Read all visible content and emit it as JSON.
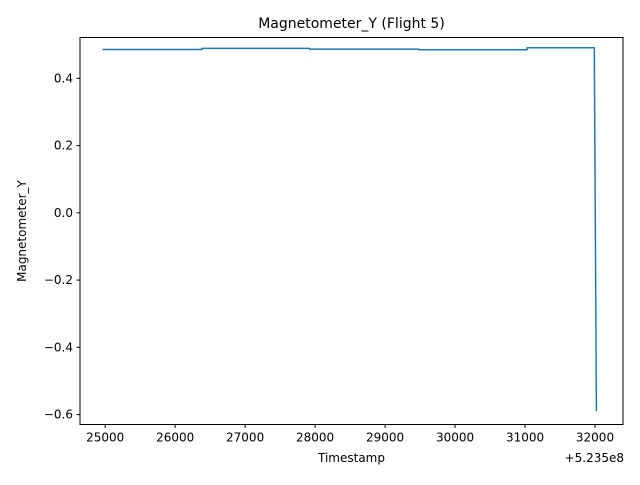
{
  "chart_data": {
    "type": "line",
    "title": "Magnetometer_Y (Flight 5)",
    "xlabel": "Timestamp",
    "ylabel": "Magnetometer_Y",
    "x_offset_label": "+5.235e8",
    "x_tick_labels": [
      "25000",
      "26000",
      "27000",
      "28000",
      "29000",
      "30000",
      "31000",
      "32000"
    ],
    "x_ticks": [
      25000,
      26000,
      27000,
      28000,
      29000,
      30000,
      31000,
      32000
    ],
    "y_tick_labels": [
      "−0.6",
      "−0.4",
      "−0.2",
      "0.0",
      "0.2",
      "0.4"
    ],
    "y_ticks": [
      -0.6,
      -0.4,
      -0.2,
      0.0,
      0.2,
      0.4
    ],
    "xlim": [
      24640,
      32400
    ],
    "ylim": [
      -0.6295,
      0.5215
    ],
    "grid": false,
    "line_color": "#1f77b4",
    "series": [
      {
        "x": [
          24960,
          26380,
          26380,
          27920,
          27920,
          29480,
          29480,
          31030,
          31030,
          31990,
          32020
        ],
        "y": [
          0.486,
          0.486,
          0.489,
          0.489,
          0.487,
          0.487,
          0.485,
          0.485,
          0.491,
          0.491,
          -0.59
        ]
      }
    ]
  }
}
